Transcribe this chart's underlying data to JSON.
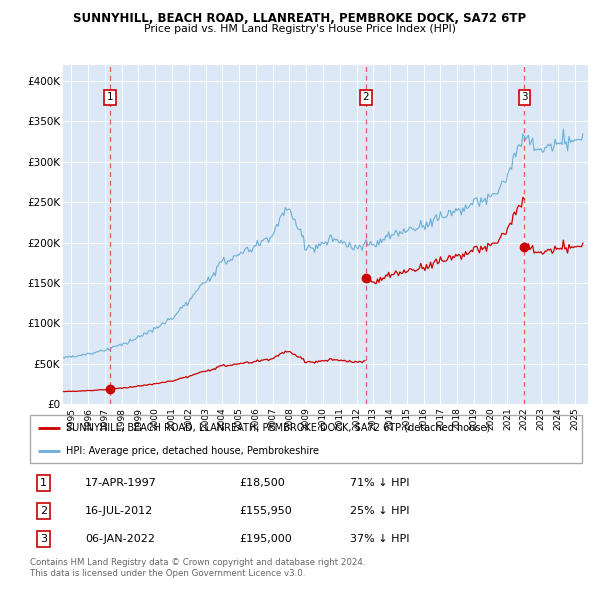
{
  "title": "SUNNYHILL, BEACH ROAD, LLANREATH, PEMBROKE DOCK, SA72 6TP",
  "subtitle": "Price paid vs. HM Land Registry's House Price Index (HPI)",
  "legend_label_red": "SUNNYHILL, BEACH ROAD, LLANREATH, PEMBROKE DOCK, SA72 6TP (detached house)",
  "legend_label_blue": "HPI: Average price, detached house, Pembrokeshire",
  "footer1": "Contains HM Land Registry data © Crown copyright and database right 2024.",
  "footer2": "This data is licensed under the Open Government Licence v3.0.",
  "sales": [
    {
      "num": 1,
      "date_label": "17-APR-1997",
      "date_x": 1997.29,
      "price": 18500,
      "pct": "71% ↓ HPI"
    },
    {
      "num": 2,
      "date_label": "16-JUL-2012",
      "date_x": 2012.54,
      "price": 155950,
      "pct": "25% ↓ HPI"
    },
    {
      "num": 3,
      "date_label": "06-JAN-2022",
      "date_x": 2022.01,
      "price": 195000,
      "pct": "37% ↓ HPI"
    }
  ],
  "ylim": [
    0,
    420000
  ],
  "xlim": [
    1994.5,
    2025.8
  ],
  "yticks": [
    0,
    50000,
    100000,
    150000,
    200000,
    250000,
    300000,
    350000,
    400000
  ],
  "ytick_labels": [
    "£0",
    "£50K",
    "£100K",
    "£150K",
    "£200K",
    "£250K",
    "£300K",
    "£350K",
    "£400K"
  ],
  "xticks": [
    1995,
    1996,
    1997,
    1998,
    1999,
    2000,
    2001,
    2002,
    2003,
    2004,
    2005,
    2006,
    2007,
    2008,
    2009,
    2010,
    2011,
    2012,
    2013,
    2014,
    2015,
    2016,
    2017,
    2018,
    2019,
    2020,
    2021,
    2022,
    2023,
    2024,
    2025
  ],
  "hpi_color": "#6baed6",
  "price_color": "#cc0000",
  "vline_color": "#e06060",
  "dot_color": "#cc0000",
  "plot_bg_color": "#dce8f5",
  "sale_dates": [
    1997.29,
    2012.54,
    2022.01
  ],
  "sale_prices": [
    18500,
    155950,
    195000
  ]
}
